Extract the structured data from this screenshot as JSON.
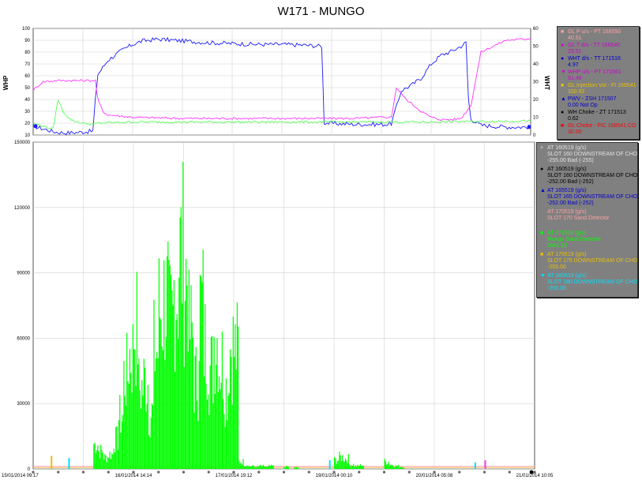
{
  "chart_data": [
    {
      "type": "line",
      "title": "W171 - MUNGO",
      "ylabel_left": "WHP",
      "ylabel_right": "WHT",
      "ylim_left": [
        10,
        100
      ],
      "ylim_right": [
        0,
        60
      ],
      "yticks_left": [
        "10",
        "20",
        "30",
        "40",
        "50",
        "60",
        "70",
        "80",
        "90",
        "100"
      ],
      "yticks_right": [
        "0",
        "10",
        "20",
        "30",
        "40",
        "50",
        "60"
      ],
      "grid": true,
      "legend_position": "right",
      "series": [
        {
          "name": "WHT d/s - TT 171516",
          "color": "#1a1aff",
          "axis": "right",
          "x": [
            0,
            0.04,
            0.05,
            0.07,
            0.09,
            0.12,
            0.125,
            0.13,
            0.15,
            0.18,
            0.2,
            0.22,
            0.25,
            0.3,
            0.35,
            0.4,
            0.45,
            0.5,
            0.55,
            0.58,
            0.585,
            0.6,
            0.65,
            0.68,
            0.7,
            0.71,
            0.72,
            0.74,
            0.76,
            0.78,
            0.8,
            0.82,
            0.84,
            0.86,
            0.87,
            0.875,
            0.88,
            0.9,
            0.95,
            1.0
          ],
          "y": [
            4.97,
            2,
            1.5,
            1.2,
            1.5,
            2.2,
            20,
            34,
            42,
            48,
            51,
            53,
            54,
            53,
            52,
            51.5,
            51,
            51,
            50.5,
            50,
            7,
            6.5,
            6,
            6,
            6,
            6,
            6.5,
            25,
            28,
            32,
            40,
            45,
            47,
            50,
            52,
            20,
            9,
            5.5,
            4.5,
            4.5
          ]
        },
        {
          "name": "WHP u/s - PT 171561",
          "color": "#ff33ff",
          "axis": "left",
          "x": [
            0,
            0.02,
            0.05,
            0.1,
            0.125,
            0.13,
            0.14,
            0.15,
            0.2,
            0.3,
            0.4,
            0.5,
            0.55,
            0.6,
            0.65,
            0.7,
            0.72,
            0.73,
            0.75,
            0.78,
            0.8,
            0.82,
            0.84,
            0.86,
            0.88,
            0.9,
            0.95,
            1.0
          ],
          "y": [
            48,
            55,
            56,
            56,
            56,
            40,
            30,
            27,
            25,
            24,
            24,
            24,
            24,
            24,
            24,
            25,
            25,
            50,
            40,
            30,
            25,
            23,
            23,
            24,
            35,
            80,
            90,
            91.48
          ]
        },
        {
          "name": "GL T d/s - TT 168540",
          "color": "#55ff55",
          "axis": "left",
          "x": [
            0,
            0.04,
            0.05,
            0.06,
            0.07,
            0.08,
            0.1,
            0.12,
            0.13,
            0.2,
            0.4,
            0.6,
            0.8,
            1.0
          ],
          "y": [
            20,
            15,
            40,
            30,
            25,
            22,
            20,
            19,
            20,
            21,
            21,
            21,
            21,
            22
          ]
        }
      ]
    },
    {
      "type": "bar",
      "ylim": [
        0,
        150000
      ],
      "yticks": [
        "0",
        "30000",
        "60000",
        "90000",
        "120000",
        "150000"
      ],
      "xticks": [
        "15/01/2014 09:17",
        "16/01/2014 14:14",
        "17/01/2014 19:12",
        "19/01/2014 00:10",
        "20/01/2014 05:08",
        "21/01/2014 10:05"
      ],
      "grid": true,
      "legend_position": "right",
      "series": [
        {
          "name": "AT 171516 (g/s)",
          "color": "#00ff00",
          "x": [
            0.12,
            0.13,
            0.14,
            0.15,
            0.16,
            0.17,
            0.18,
            0.19,
            0.2,
            0.21,
            0.22,
            0.23,
            0.24,
            0.25,
            0.26,
            0.27,
            0.28,
            0.29,
            0.3,
            0.31,
            0.32,
            0.33,
            0.34,
            0.35,
            0.36,
            0.37,
            0.38,
            0.39,
            0.4,
            0.41,
            0.42,
            0.43,
            0.44,
            0.45,
            0.46,
            0.47,
            0.5,
            0.52,
            0.6,
            0.61,
            0.62,
            0.63,
            0.64,
            0.65,
            0.7,
            0.71,
            0.72,
            0.73
          ],
          "y": [
            17000,
            12000,
            8000,
            10000,
            20000,
            35000,
            63000,
            78000,
            95000,
            55000,
            60000,
            38000,
            80000,
            108000,
            115000,
            98000,
            122000,
            145000,
            132000,
            92000,
            60000,
            110000,
            85000,
            68000,
            90000,
            73000,
            55000,
            83000,
            80000,
            5000,
            3000,
            2000,
            1500,
            2000,
            1500,
            2000,
            1500,
            1000,
            6000,
            8000,
            7000,
            3000,
            2000,
            2500,
            5000,
            3000,
            2000,
            1500
          ]
        }
      ]
    }
  ],
  "legend_top": [
    {
      "label": "GL P u/s - PT 168550",
      "value": "40.51",
      "color": "#ffa0a0",
      "marker": "square"
    },
    {
      "label": "GL T d/s - TT 168540",
      "value": "29.51",
      "color": "#d000d0",
      "marker": "circle"
    },
    {
      "label": "WHT d/s - TT 171516",
      "value": "4.97",
      "color": "#0000cc",
      "marker": "circle"
    },
    {
      "label": "WHP u/s - PT 171561",
      "value": "91.48",
      "color": "#d000d0",
      "marker": "triangle-down"
    },
    {
      "label": "GL Injection Vol - FI 168541",
      "value": "100.92",
      "color": "#e8c000",
      "marker": "square"
    },
    {
      "label": "PWV - ZSH 171507",
      "value": "0.00 Not Op",
      "color": "#0000cc",
      "marker": "triangle-up"
    },
    {
      "label": "WH Choke - ZT 171513",
      "value": "0.62",
      "color": "#000000",
      "marker": "circle"
    },
    {
      "label": "GL Choke - FIC 168541.CO",
      "value": "30.00",
      "color": "#ff0000",
      "marker": "square"
    }
  ],
  "legend_bottom": [
    {
      "label": "AT 160519 (g/s)",
      "desc": "SLOT 160 DOWNSTREAM OF CHO",
      "value": "-255.00 Bad (-255)",
      "color": "#e0e0e0",
      "marker": "plus"
    },
    {
      "label": "AT 160519 (g/s)",
      "desc": "SLOT 160 DOWNSTREAM OF CHO",
      "value": "-252.00 Bad (-252)",
      "color": "#000000",
      "marker": "circle"
    },
    {
      "label": "AT 165519 (g/s)",
      "desc": "SLOT 165 DOWNSTREAM OF CHO",
      "value": "-252.00 Bad (-252)",
      "color": "#0000cc",
      "marker": "triangle-up"
    },
    {
      "label": "AT 170519 (g/s)",
      "desc": "SLOT 170 Sand Detector",
      "value": "",
      "color": "#ffa0a0",
      "marker": "none"
    },
    {
      "label": "AT 171516 (g/s)",
      "desc": "Mungo Sand Detector",
      "value": "2601.62",
      "color": "#00ff00",
      "marker": "square"
    },
    {
      "label": "AT 175519 (g/s)",
      "desc": "SLOT 175 DOWNSTREAM OF CHO",
      "value": "-255.00",
      "color": "#e8c000",
      "marker": "square"
    },
    {
      "label": "AT 180519 (g/s)",
      "desc": "SLOT 180 DOWNSTREAM OF CHO",
      "value": "-255.00",
      "color": "#00e0ff",
      "marker": "triangle-down"
    }
  ]
}
